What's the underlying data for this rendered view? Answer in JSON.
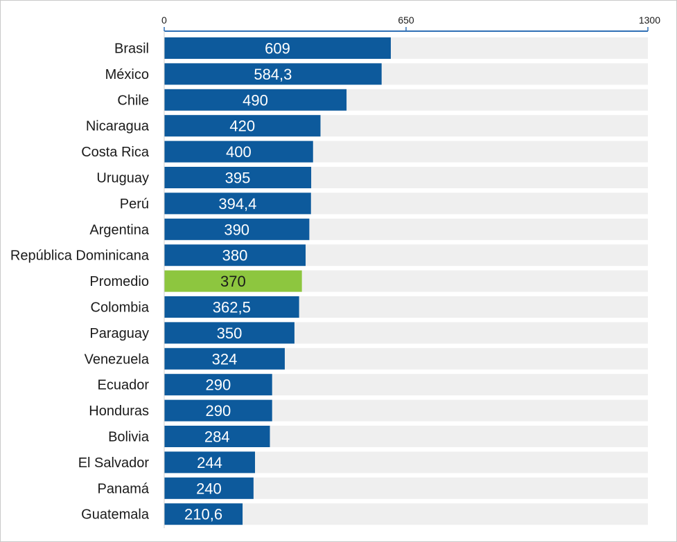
{
  "chart_data": {
    "type": "bar",
    "orientation": "horizontal",
    "categories": [
      "Brasil",
      "México",
      "Chile",
      "Nicaragua",
      "Costa Rica",
      "Uruguay",
      "Perú",
      "Argentina",
      "República Dominicana",
      "Promedio",
      "Colombia",
      "Paraguay",
      "Venezuela",
      "Ecuador",
      "Honduras",
      "Bolivia",
      "El Salvador",
      "Panamá",
      "Guatemala"
    ],
    "values": [
      609,
      584.3,
      490,
      420,
      400,
      395,
      394.4,
      390,
      380,
      370,
      362.5,
      350,
      324,
      290,
      290,
      284,
      244,
      240,
      210.6
    ],
    "value_labels": [
      "609",
      "584,3",
      "490",
      "420",
      "400",
      "395",
      "394,4",
      "390",
      "380",
      "370",
      "362,5",
      "350",
      "324",
      "290",
      "290",
      "284",
      "244",
      "240",
      "210,6"
    ],
    "xlim": [
      0,
      1300
    ],
    "x_ticks": [
      0,
      650,
      1300
    ],
    "x_tick_labels": [
      "0",
      "650",
      "1300"
    ],
    "axis_position": "top",
    "grid": false,
    "legend": "none",
    "title": "",
    "xlabel": "",
    "ylabel": "",
    "highlight_category": "Promedio",
    "colors": {
      "bar": "#0d5a9c",
      "highlight": "#8dc63f",
      "track": "#efefef",
      "axis": "#2e6fb5"
    }
  }
}
